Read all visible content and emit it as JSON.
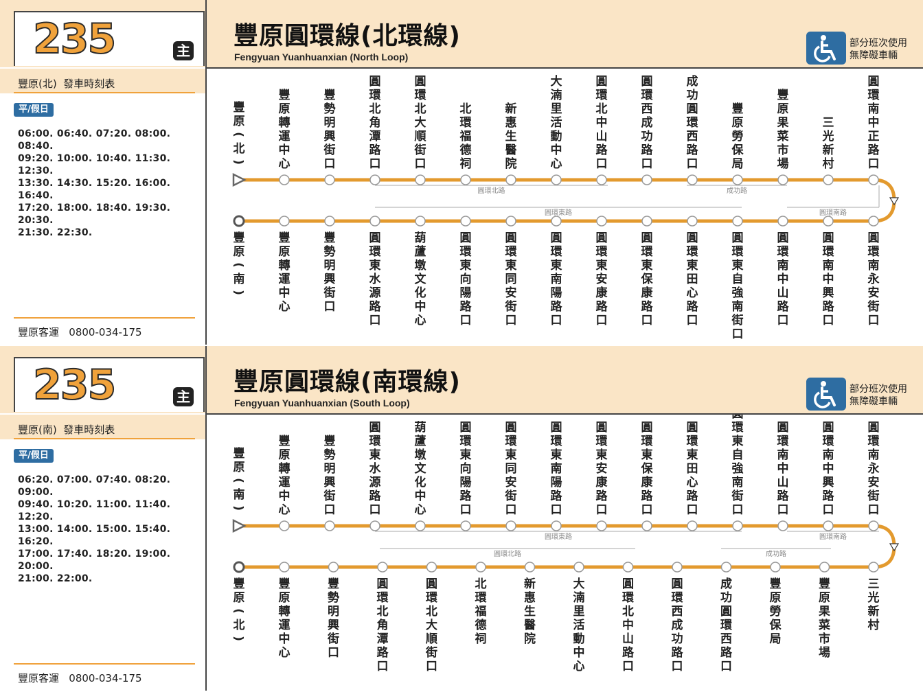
{
  "panels": [
    {
      "route_number": "235",
      "main_badge": "主",
      "title": "豐原圓環線(北環線)",
      "subtitle": "Fengyuan Yuanhuanxian (North Loop)",
      "accessibility": {
        "line1": "部分班次使用",
        "line2": "無障礙車輛",
        "icon": "wheelchair-icon"
      },
      "timetable_title": "豐原(北)  發車時刻表",
      "day_badge": "平/假日",
      "times": "06:00. 06:40. 07:20. 08:00. 08:40.\n09:20. 10:00. 10:40. 11:30. 12:30.\n13:30. 14:30. 15:20. 16:00. 16:40.\n17:20. 18:00. 18:40. 19:30. 20:30.\n21:30. 22:30.",
      "footer": "豐原客運   0800-034-175",
      "start_label": "豐原(北)",
      "end_label": "豐原(南)",
      "top_stops": [
        "豐原轉運中心",
        "豐勢明興街口",
        "圓環北角潭路口",
        "圓環北大順街口",
        "北環福德祠",
        "新惠生醫院",
        "大湳里活動中心",
        "圓環北中山路口",
        "圓環西成功路口",
        "成功圓環西路口",
        "豐原勞保局",
        "豐原果菜市場",
        "三光新村",
        "圓環南中正路口"
      ],
      "bottom_stops": [
        "豐原轉運中心",
        "豐勢明興街口",
        "圓環東水源路口",
        "葫蘆墩文化中心",
        "圓環東向陽路口",
        "圓環東同安街口",
        "圓環東南陽路口",
        "圓環東安康路口",
        "圓環東保康路口",
        "圓環東田心路口",
        "圓環東自強南街口",
        "圓環南中山路口",
        "圓環南中興路口",
        "圓環南永安街口"
      ],
      "top_segments": [
        "圓環北路",
        "成功路"
      ],
      "bottom_segments": [
        "圓環東路",
        "圓環南路"
      ]
    },
    {
      "route_number": "235",
      "main_badge": "主",
      "title": "豐原圓環線(南環線)",
      "subtitle": "Fengyuan Yuanhuanxian (South Loop)",
      "accessibility": {
        "line1": "部分班次使用",
        "line2": "無障礙車輛",
        "icon": "wheelchair-icon"
      },
      "timetable_title": "豐原(南)  發車時刻表",
      "day_badge": "平/假日",
      "times": "06:20. 07:00. 07:40. 08:20. 09:00.\n09:40. 10:20. 11:00. 11:40. 12:20.\n13:00. 14:00. 15:00. 15:40. 16:20.\n17:00. 17:40. 18:20. 19:00. 20:00.\n21:00. 22:00.",
      "footer": "豐原客運   0800-034-175",
      "start_label": "豐原(南)",
      "end_label": "豐原(北)",
      "top_stops": [
        "豐原轉運中心",
        "豐勢明興街口",
        "圓環東水源路口",
        "葫蘆墩文化中心",
        "圓環東向陽路口",
        "圓環東同安街口",
        "圓環東南陽路口",
        "圓環東安康路口",
        "圓環東保康路口",
        "圓環東田心路口",
        "圓環東自強南街口",
        "圓環南中山路口",
        "圓環南中興路口",
        "圓環南永安街口"
      ],
      "bottom_stops": [
        "豐原轉運中心",
        "豐勢明興街口",
        "圓環北角潭路口",
        "圓環北大順街口",
        "北環福德祠",
        "新惠生醫院",
        "大湳里活動中心",
        "圓環北中山路口",
        "圓環西成功路口",
        "成功圓環西路口",
        "豐原勞保局",
        "豐原果菜市場",
        "三光新村"
      ],
      "top_segments": [
        "圓環東路",
        "圓環南路"
      ],
      "bottom_segments": [
        "圓環北路",
        "成功路"
      ]
    }
  ],
  "colors": {
    "route_line": "#e39a2e",
    "panel_bg": "#fae5c6",
    "accent_blue": "#2e6da2",
    "number": "#f0a23b"
  }
}
